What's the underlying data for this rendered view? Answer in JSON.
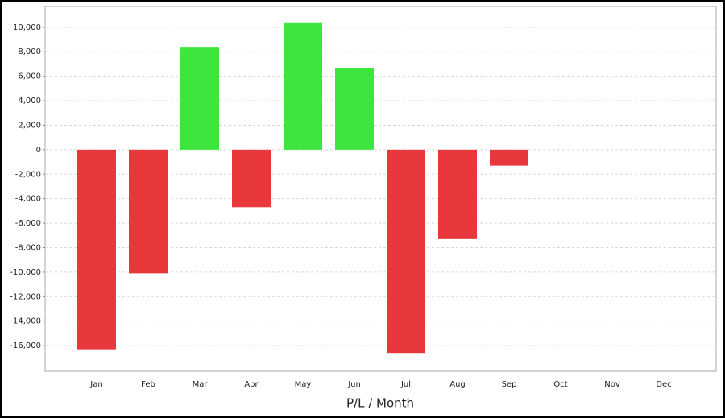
{
  "chart_data": {
    "type": "bar",
    "x_label": "P/L / Month",
    "categories": [
      "Jan",
      "Feb",
      "Mar",
      "Apr",
      "May",
      "Jun",
      "Jul",
      "Aug",
      "Sep",
      "Oct",
      "Nov",
      "Dec"
    ],
    "values": [
      -16300,
      -10100,
      8400,
      -4700,
      10400,
      6700,
      -16600,
      -7300,
      -1300,
      null,
      null,
      null
    ],
    "positive_color": "#3de63d",
    "negative_color": "#e8383b",
    "ylim": [
      -18100,
      11700
    ],
    "yticks": [
      {
        "value": -16000,
        "label": "-16,000"
      },
      {
        "value": -14000,
        "label": "-14,000"
      },
      {
        "value": -12000,
        "label": "-12,000"
      },
      {
        "value": -10000,
        "label": "-10,000"
      },
      {
        "value": -8000,
        "label": "-8,000"
      },
      {
        "value": -6000,
        "label": "-6,000"
      },
      {
        "value": -4000,
        "label": "-4,000"
      },
      {
        "value": -2000,
        "label": "-2,000"
      },
      0,
      {
        "value": 2000,
        "label": "2,000"
      },
      {
        "value": 4000,
        "label": "4,000"
      },
      {
        "value": 6000,
        "label": "6,000"
      },
      {
        "value": 8000,
        "label": "8,000"
      },
      {
        "value": 10000,
        "label": "10,000"
      }
    ],
    "grid": true
  }
}
